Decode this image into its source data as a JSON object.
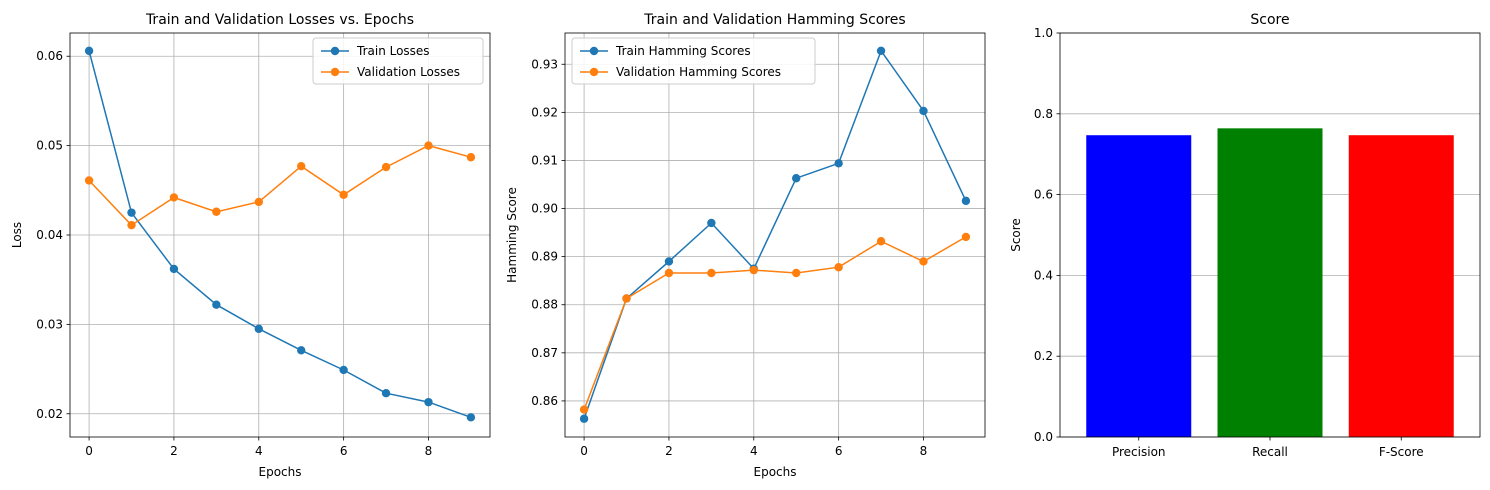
{
  "chart_data": [
    {
      "type": "line",
      "title": "Train and Validation Losses vs. Epochs",
      "xlabel": "Epochs",
      "ylabel": "Loss",
      "x": [
        0,
        1,
        2,
        3,
        4,
        5,
        6,
        7,
        8,
        9
      ],
      "xlim": [
        -0.45,
        9.45
      ],
      "ylim": [
        0.0174,
        0.0626
      ],
      "xticks": [
        0,
        2,
        4,
        6,
        8
      ],
      "yticks": [
        0.02,
        0.03,
        0.04,
        0.05,
        0.06
      ],
      "ytick_labels": [
        "0.02",
        "0.03",
        "0.04",
        "0.05",
        "0.06"
      ],
      "grid": "both",
      "legend": "top-right",
      "series": [
        {
          "name": "Train Losses",
          "color": "#1f77b4",
          "values": [
            0.0606,
            0.0425,
            0.0362,
            0.0322,
            0.0295,
            0.0271,
            0.0249,
            0.0223,
            0.0213,
            0.0196
          ]
        },
        {
          "name": "Validation Losses",
          "color": "#ff7f0e",
          "values": [
            0.0461,
            0.0411,
            0.0442,
            0.0426,
            0.0437,
            0.0477,
            0.0445,
            0.0476,
            0.05,
            0.0487
          ]
        }
      ]
    },
    {
      "type": "line",
      "title": "Train and Validation Hamming Scores",
      "xlabel": "Epochs",
      "ylabel": "Hamming Score",
      "x": [
        0,
        1,
        2,
        3,
        4,
        5,
        6,
        7,
        8,
        9
      ],
      "xlim": [
        -0.45,
        9.45
      ],
      "ylim": [
        0.8525,
        0.9365
      ],
      "xticks": [
        0,
        2,
        4,
        6,
        8
      ],
      "yticks": [
        0.86,
        0.87,
        0.88,
        0.89,
        0.9,
        0.91,
        0.92,
        0.93
      ],
      "ytick_labels": [
        "0.86",
        "0.87",
        "0.88",
        "0.89",
        "0.90",
        "0.91",
        "0.92",
        "0.93"
      ],
      "grid": "both",
      "legend": "top-left",
      "series": [
        {
          "name": "Train Hamming Scores",
          "color": "#1f77b4",
          "values": [
            0.8563,
            0.8813,
            0.889,
            0.897,
            0.8875,
            0.9063,
            0.9094,
            0.9328,
            0.9203,
            0.9016
          ]
        },
        {
          "name": "Validation Hamming Scores",
          "color": "#ff7f0e",
          "values": [
            0.8582,
            0.8813,
            0.8866,
            0.8866,
            0.8872,
            0.8866,
            0.8878,
            0.8932,
            0.889,
            0.8941
          ]
        }
      ]
    },
    {
      "type": "bar",
      "title": "Score",
      "xlabel": "",
      "ylabel": "Score",
      "categories": [
        "Precision",
        "Recall",
        "F-Score"
      ],
      "values": [
        0.747,
        0.764,
        0.747
      ],
      "colors": [
        "#0000ff",
        "#008000",
        "#ff0000"
      ],
      "ylim": [
        0,
        1
      ],
      "yticks": [
        0.0,
        0.2,
        0.4,
        0.6,
        0.8,
        1.0
      ],
      "ytick_labels": [
        "0.0",
        "0.2",
        "0.4",
        "0.6",
        "0.8",
        "1.0"
      ],
      "grid": "y"
    }
  ]
}
